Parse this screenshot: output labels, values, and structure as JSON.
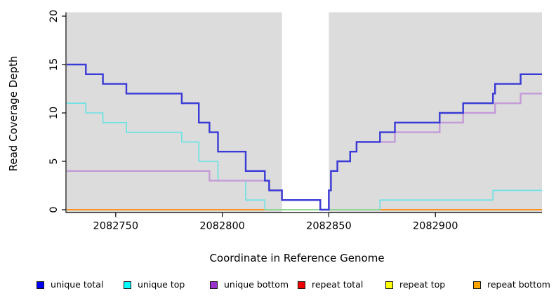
{
  "axes": {
    "x_label": "Coordinate in Reference Genome",
    "y_label": "Read Coverage Depth",
    "x_ticks": [
      2082750,
      2082800,
      2082850,
      2082900
    ],
    "y_ticks": [
      0,
      5,
      10,
      15,
      20
    ]
  },
  "chart_data": {
    "type": "line",
    "subtype": "step",
    "title": "",
    "xlabel": "Coordinate in Reference Genome",
    "ylabel": "Read Coverage Depth",
    "xlim": [
      2082727,
      2082950
    ],
    "ylim": [
      0,
      20
    ],
    "grid": false,
    "plot_background": "#dcdcdc",
    "masked_region": {
      "x0": 2082828,
      "x1": 2082850,
      "color": "#ffffff"
    },
    "x_ticks": [
      2082750,
      2082800,
      2082850,
      2082900
    ],
    "y_ticks": [
      0,
      5,
      10,
      15,
      20
    ],
    "series": [
      {
        "name": "repeat total",
        "color": "#cc0000",
        "width": 2,
        "points": [
          [
            2082727,
            0
          ]
        ],
        "xend": 2082950
      },
      {
        "name": "repeat top",
        "color": "#f5f500",
        "width": 2,
        "points": [
          [
            2082727,
            0
          ]
        ],
        "xend": 2082950
      },
      {
        "name": "repeat bottom",
        "color": "#ff921f",
        "width": 2,
        "points": [
          [
            2082727,
            0
          ]
        ],
        "xend": 2082950
      },
      {
        "name": "unique top",
        "color": "#68e2e4",
        "width": 1.6,
        "points": [
          [
            2082727,
            11
          ],
          [
            2082736,
            10
          ],
          [
            2082744,
            9
          ],
          [
            2082755,
            8
          ],
          [
            2082781,
            7
          ],
          [
            2082789,
            5
          ],
          [
            2082798,
            3
          ],
          [
            2082811,
            1
          ],
          [
            2082820,
            0
          ],
          [
            2082874,
            1
          ],
          [
            2082927,
            2
          ]
        ],
        "xend": 2082950
      },
      {
        "name": "unique bottom",
        "color": "#c49bd8",
        "width": 2.4,
        "points": [
          [
            2082727,
            4
          ],
          [
            2082794,
            3
          ],
          [
            2082822,
            2
          ],
          [
            2082828,
            1
          ],
          [
            2082846,
            0
          ],
          [
            2082850,
            2
          ],
          [
            2082851,
            4
          ],
          [
            2082854,
            5
          ],
          [
            2082860,
            6
          ],
          [
            2082863,
            7
          ],
          [
            2082881,
            8
          ],
          [
            2082902,
            9
          ],
          [
            2082913,
            10
          ],
          [
            2082928,
            11
          ],
          [
            2082940,
            12
          ]
        ],
        "xend": 2082950
      },
      {
        "name": "unique total",
        "color": "#3a3ad6",
        "width": 2.4,
        "points": [
          [
            2082727,
            15
          ],
          [
            2082736,
            14
          ],
          [
            2082744,
            13
          ],
          [
            2082755,
            12
          ],
          [
            2082781,
            11
          ],
          [
            2082789,
            9
          ],
          [
            2082794,
            8
          ],
          [
            2082798,
            6
          ],
          [
            2082811,
            4
          ],
          [
            2082820,
            3
          ],
          [
            2082822,
            2
          ],
          [
            2082828,
            1
          ],
          [
            2082846,
            0
          ],
          [
            2082850,
            2
          ],
          [
            2082851,
            4
          ],
          [
            2082854,
            5
          ],
          [
            2082860,
            6
          ],
          [
            2082863,
            7
          ],
          [
            2082874,
            8
          ],
          [
            2082881,
            9
          ],
          [
            2082902,
            10
          ],
          [
            2082913,
            11
          ],
          [
            2082927,
            12
          ],
          [
            2082928,
            13
          ],
          [
            2082940,
            14
          ]
        ],
        "xend": 2082950
      }
    ],
    "baseline_overlay": {
      "x0": 2082820,
      "x1": 2082874,
      "y": 0,
      "color": "#90d493",
      "note": "zero line renders pale green where unique top and repeat top overlap"
    },
    "legend_position": "bottom"
  },
  "legend": {
    "items": [
      {
        "label": "unique total",
        "color": "#0000ee",
        "border": "#161616"
      },
      {
        "label": "unique top",
        "color": "#00ffff",
        "border": "#161616"
      },
      {
        "label": "unique bottom",
        "color": "#9a32cd",
        "border": "#161616"
      },
      {
        "label": "repeat total",
        "color": "#ee0000",
        "border": "#161616"
      },
      {
        "label": "repeat top",
        "color": "#ffff00",
        "border": "#161616"
      },
      {
        "label": "repeat bottom",
        "color": "#ffa500",
        "border": "#161616"
      }
    ]
  }
}
